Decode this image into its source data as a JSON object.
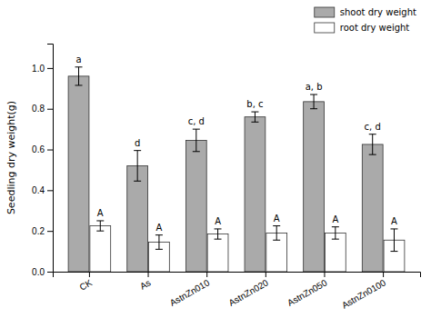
{
  "chart_data": {
    "type": "bar",
    "categories": [
      "CK",
      "As",
      "AstnZn010",
      "AstnZn020",
      "AstnZn050",
      "AstnZn0100"
    ],
    "series": [
      {
        "name": "shoot dry weight",
        "color": "#AAAAAA",
        "values": [
          0.96,
          0.52,
          0.645,
          0.76,
          0.835,
          0.625
        ],
        "errors": [
          0.045,
          0.075,
          0.055,
          0.025,
          0.035,
          0.05
        ],
        "annotations": [
          "a",
          "d",
          "c, d",
          "b, c",
          "a, b",
          "c, d"
        ]
      },
      {
        "name": "root dry weight",
        "color": "#FFFFFF",
        "values": [
          0.225,
          0.145,
          0.185,
          0.19,
          0.19,
          0.155
        ],
        "errors": [
          0.025,
          0.035,
          0.025,
          0.035,
          0.03,
          0.055
        ],
        "annotations": [
          "A",
          "A",
          "A",
          "A",
          "A",
          "A"
        ]
      }
    ],
    "ylabel": "Seedling dry weight(g)",
    "ylim": [
      0.0,
      1.12
    ],
    "yticks": [
      {
        "value": 0.0,
        "label": "0.0"
      },
      0.2,
      0.4,
      0.6,
      0.8,
      {
        "value": 1.0,
        "label": "1.0"
      }
    ],
    "legend": "upper right",
    "grid": false
  }
}
